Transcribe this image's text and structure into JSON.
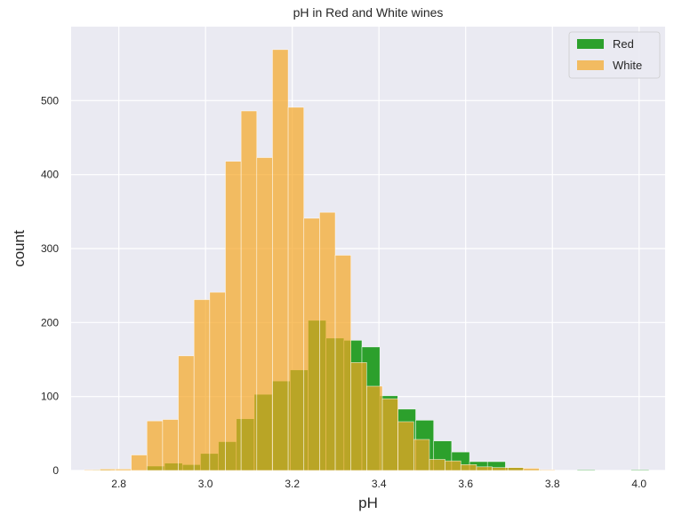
{
  "chart_data": {
    "type": "histogram",
    "title": "pH in Red and White wines",
    "xlabel": "pH",
    "ylabel": "count",
    "xlim": [
      2.69,
      4.06
    ],
    "ylim": [
      0,
      600
    ],
    "xticks": [
      2.8,
      3.0,
      3.2,
      3.4,
      3.6,
      3.8,
      4.0
    ],
    "xtick_labels": [
      "2.8",
      "3.0",
      "3.2",
      "3.4",
      "3.6",
      "3.8",
      "4.0"
    ],
    "yticks": [
      0,
      100,
      200,
      300,
      400,
      500
    ],
    "ytick_labels": [
      "0",
      "100",
      "200",
      "300",
      "400",
      "500"
    ],
    "grid": true,
    "legend_position": "top-right",
    "series": [
      {
        "name": "Red",
        "color": "#2ca02c",
        "bin_edges": [
          2.74,
          2.7814,
          2.8228,
          2.8641,
          2.9055,
          2.9469,
          2.9883,
          3.0297,
          3.071,
          3.1124,
          3.1538,
          3.1952,
          3.2366,
          3.2779,
          3.3193,
          3.3607,
          3.4021,
          3.4434,
          3.4848,
          3.5262,
          3.5676,
          3.609,
          3.6503,
          3.6917,
          3.7331,
          3.7745,
          3.8159,
          3.8572,
          3.8986,
          3.94,
          3.9814,
          4.0228
        ],
        "counts": [
          1,
          0,
          0,
          6,
          10,
          8,
          23,
          39,
          70,
          103,
          121,
          136,
          203,
          179,
          176,
          167,
          101,
          83,
          68,
          40,
          25,
          12,
          12,
          4,
          1,
          0,
          0,
          1,
          0,
          0,
          1
        ]
      },
      {
        "name": "White",
        "color": "#f5a623",
        "bin_edges": [
          2.72,
          2.7562,
          2.7924,
          2.8286,
          2.8648,
          2.901,
          2.9372,
          2.9734,
          3.0096,
          3.0458,
          3.082,
          3.1182,
          3.1544,
          3.1906,
          3.2268,
          3.263,
          3.2992,
          3.3354,
          3.3716,
          3.4078,
          3.444,
          3.4802,
          3.5164,
          3.5526,
          3.5888,
          3.625,
          3.6612,
          3.6974,
          3.7336,
          3.7698,
          3.806,
          3.8422
        ],
        "counts": [
          1,
          2,
          2,
          21,
          67,
          69,
          155,
          231,
          241,
          418,
          486,
          423,
          569,
          491,
          341,
          349,
          291,
          146,
          114,
          97,
          66,
          42,
          15,
          13,
          8,
          5,
          4,
          4,
          3,
          1,
          0
        ]
      }
    ]
  }
}
